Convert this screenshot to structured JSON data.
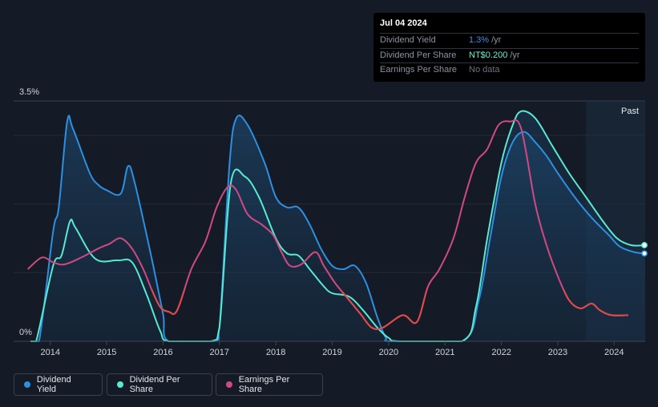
{
  "tooltip": {
    "date": "Jul 04 2024",
    "rows": [
      {
        "label": "Dividend Yield",
        "value": "1.3%",
        "unit": "/yr",
        "color": "#3b8fe0"
      },
      {
        "label": "Dividend Per Share",
        "value": "NT$0.200",
        "unit": "/yr",
        "color": "#6ef0d2"
      },
      {
        "label": "Earnings Per Share",
        "value": "No data",
        "unit": "",
        "color": "#6b7380"
      }
    ]
  },
  "legend": [
    {
      "label": "Dividend Yield",
      "color": "#2e8fe0"
    },
    {
      "label": "Dividend Per Share",
      "color": "#5ae8d0"
    },
    {
      "label": "Earnings Per Share",
      "color": "#cf4a82"
    }
  ],
  "chart_data": {
    "type": "line",
    "y_top_label": "3.5%",
    "y_bottom_label": "0%",
    "ylim": [
      0,
      3.5
    ],
    "xlim": [
      2013.35,
      2024.55
    ],
    "x_ticks": [
      "2014",
      "2015",
      "2016",
      "2017",
      "2018",
      "2019",
      "2020",
      "2021",
      "2022",
      "2023",
      "2024"
    ],
    "past_label": "Past",
    "past_start": 2023.5,
    "series": [
      {
        "name": "Dividend Yield",
        "color": "#2e8fe0",
        "points": [
          [
            2013.65,
            0
          ],
          [
            2013.8,
            0
          ],
          [
            2014.05,
            1.6
          ],
          [
            2014.15,
            1.95
          ],
          [
            2014.3,
            3.2
          ],
          [
            2014.4,
            3.1
          ],
          [
            2014.7,
            2.45
          ],
          [
            2014.85,
            2.28
          ],
          [
            2015.0,
            2.2
          ],
          [
            2015.25,
            2.15
          ],
          [
            2015.38,
            2.55
          ],
          [
            2015.5,
            2.3
          ],
          [
            2015.8,
            1.2
          ],
          [
            2016.0,
            0.4
          ],
          [
            2016.1,
            0
          ],
          [
            2016.9,
            0
          ],
          [
            2017.0,
            0.2
          ],
          [
            2017.18,
            2.6
          ],
          [
            2017.3,
            3.25
          ],
          [
            2017.5,
            3.15
          ],
          [
            2017.8,
            2.6
          ],
          [
            2018.0,
            2.1
          ],
          [
            2018.2,
            1.95
          ],
          [
            2018.4,
            1.95
          ],
          [
            2018.6,
            1.7
          ],
          [
            2018.8,
            1.35
          ],
          [
            2019.0,
            1.1
          ],
          [
            2019.2,
            1.05
          ],
          [
            2019.4,
            1.1
          ],
          [
            2019.6,
            0.85
          ],
          [
            2019.8,
            0.35
          ],
          [
            2019.95,
            0.05
          ],
          [
            2020.05,
            0
          ],
          [
            2021.3,
            0
          ],
          [
            2021.6,
            0.6
          ],
          [
            2021.8,
            1.5
          ],
          [
            2022.0,
            2.4
          ],
          [
            2022.2,
            2.9
          ],
          [
            2022.4,
            3.05
          ],
          [
            2022.6,
            2.9
          ],
          [
            2022.8,
            2.7
          ],
          [
            2023.0,
            2.45
          ],
          [
            2023.3,
            2.1
          ],
          [
            2023.6,
            1.8
          ],
          [
            2023.9,
            1.55
          ],
          [
            2024.1,
            1.38
          ],
          [
            2024.35,
            1.3
          ],
          [
            2024.55,
            1.28
          ]
        ]
      },
      {
        "name": "Dividend Per Share",
        "color": "#5ae8d0",
        "points": [
          [
            2013.65,
            0
          ],
          [
            2013.75,
            0
          ],
          [
            2014.05,
            1.1
          ],
          [
            2014.2,
            1.25
          ],
          [
            2014.35,
            1.75
          ],
          [
            2014.45,
            1.65
          ],
          [
            2014.8,
            1.2
          ],
          [
            2015.2,
            1.18
          ],
          [
            2015.45,
            1.15
          ],
          [
            2015.7,
            0.7
          ],
          [
            2015.95,
            0.15
          ],
          [
            2016.1,
            0
          ],
          [
            2016.85,
            0
          ],
          [
            2017.0,
            0.2
          ],
          [
            2017.2,
            2.3
          ],
          [
            2017.45,
            2.4
          ],
          [
            2017.7,
            2.1
          ],
          [
            2018.0,
            1.5
          ],
          [
            2018.2,
            1.28
          ],
          [
            2018.4,
            1.25
          ],
          [
            2018.6,
            1.05
          ],
          [
            2018.85,
            0.8
          ],
          [
            2019.0,
            0.7
          ],
          [
            2019.3,
            0.65
          ],
          [
            2019.55,
            0.45
          ],
          [
            2019.8,
            0.2
          ],
          [
            2020.0,
            0.05
          ],
          [
            2020.2,
            0
          ],
          [
            2021.3,
            0
          ],
          [
            2021.55,
            0.5
          ],
          [
            2021.75,
            1.5
          ],
          [
            2022.0,
            2.6
          ],
          [
            2022.2,
            3.15
          ],
          [
            2022.35,
            3.35
          ],
          [
            2022.6,
            3.25
          ],
          [
            2022.9,
            2.85
          ],
          [
            2023.2,
            2.45
          ],
          [
            2023.5,
            2.1
          ],
          [
            2023.8,
            1.75
          ],
          [
            2024.05,
            1.5
          ],
          [
            2024.3,
            1.4
          ],
          [
            2024.55,
            1.4
          ]
        ]
      },
      {
        "name": "Earnings Per Share",
        "color": "#cf4a82",
        "points": [
          [
            2013.6,
            1.05
          ],
          [
            2013.85,
            1.22
          ],
          [
            2014.05,
            1.15
          ],
          [
            2014.25,
            1.12
          ],
          [
            2014.55,
            1.22
          ],
          [
            2014.85,
            1.35
          ],
          [
            2015.05,
            1.42
          ],
          [
            2015.25,
            1.5
          ],
          [
            2015.45,
            1.35
          ],
          [
            2015.65,
            1.05
          ],
          [
            2015.8,
            0.75
          ],
          [
            2015.95,
            0.5
          ],
          [
            2016.1,
            0.43
          ],
          [
            2016.25,
            0.45
          ],
          [
            2016.5,
            1.05
          ],
          [
            2016.75,
            1.45
          ],
          [
            2016.95,
            1.95
          ],
          [
            2017.15,
            2.25
          ],
          [
            2017.3,
            2.2
          ],
          [
            2017.5,
            1.85
          ],
          [
            2017.75,
            1.7
          ],
          [
            2017.95,
            1.55
          ],
          [
            2018.1,
            1.3
          ],
          [
            2018.25,
            1.1
          ],
          [
            2018.45,
            1.12
          ],
          [
            2018.7,
            1.3
          ],
          [
            2018.85,
            1.1
          ],
          [
            2019.05,
            0.85
          ],
          [
            2019.25,
            0.65
          ],
          [
            2019.5,
            0.4
          ],
          [
            2019.7,
            0.2
          ],
          [
            2019.9,
            0.2
          ],
          [
            2020.25,
            0.38
          ],
          [
            2020.5,
            0.28
          ],
          [
            2020.7,
            0.8
          ],
          [
            2020.9,
            1.05
          ],
          [
            2021.15,
            1.5
          ],
          [
            2021.35,
            2.1
          ],
          [
            2021.55,
            2.6
          ],
          [
            2021.75,
            2.8
          ],
          [
            2021.95,
            3.15
          ],
          [
            2022.15,
            3.2
          ],
          [
            2022.35,
            3.1
          ],
          [
            2022.6,
            2.0
          ],
          [
            2022.8,
            1.4
          ],
          [
            2023.0,
            0.95
          ],
          [
            2023.2,
            0.6
          ],
          [
            2023.4,
            0.48
          ],
          [
            2023.6,
            0.55
          ],
          [
            2023.75,
            0.45
          ],
          [
            2023.95,
            0.38
          ],
          [
            2024.25,
            0.38
          ]
        ]
      }
    ]
  }
}
